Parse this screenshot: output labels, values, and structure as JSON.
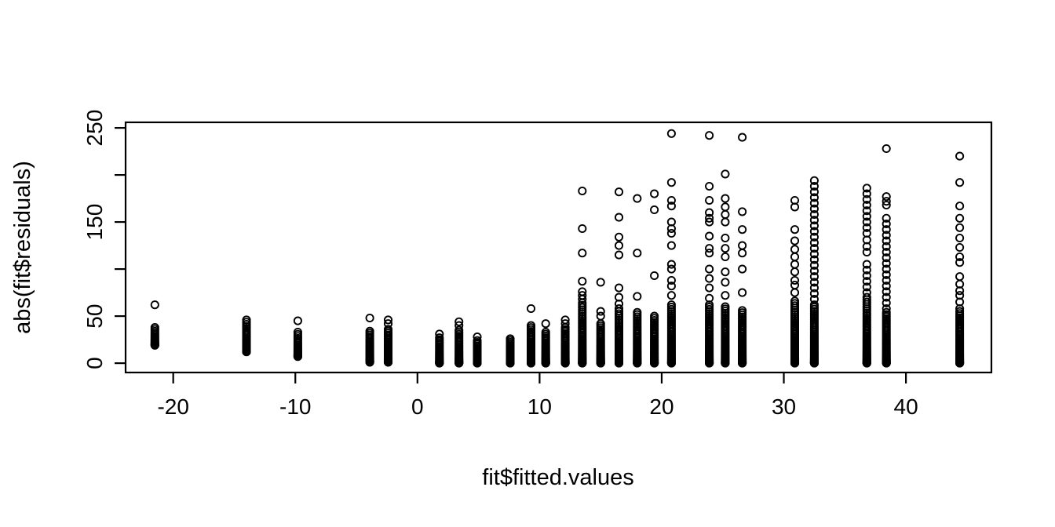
{
  "figure": {
    "background": "#ffffff",
    "foreground": "#000000"
  },
  "chart_data": {
    "type": "scatter",
    "title": "",
    "xlabel": "fit$fitted.values",
    "ylabel": "abs(fit$residuals)",
    "marker": "open-circle",
    "marker_color": "#000000",
    "grid": false,
    "legend": null,
    "xlim": [
      -23.9,
      47.0
    ],
    "ylim": [
      -9.9,
      255.9
    ],
    "x_ticks": [
      -20,
      -10,
      0,
      10,
      20,
      30,
      40
    ],
    "x_tick_labels": [
      "-20",
      "-10",
      "0",
      "10",
      "20",
      "30",
      "40"
    ],
    "y_ticks": [
      0,
      50,
      100,
      150,
      200,
      250
    ],
    "y_tick_labels": [
      "0",
      "50",
      "",
      "150",
      "",
      "250"
    ],
    "clusters": [
      {
        "x": -21.5,
        "dense": [
          19,
          38
        ],
        "n": 16,
        "outliers": [
          62
        ]
      },
      {
        "x": -14.0,
        "dense": [
          12,
          46
        ],
        "n": 25,
        "outliers": []
      },
      {
        "x": -9.8,
        "dense": [
          7,
          33
        ],
        "n": 20,
        "outliers": [
          45
        ]
      },
      {
        "x": -3.9,
        "dense": [
          1,
          34
        ],
        "n": 28,
        "outliers": [
          48
        ]
      },
      {
        "x": -2.4,
        "dense": [
          1,
          36
        ],
        "n": 30,
        "outliers": [
          46,
          42
        ]
      },
      {
        "x": 1.8,
        "dense": [
          0,
          27
        ],
        "n": 24,
        "outliers": [
          31
        ]
      },
      {
        "x": 3.4,
        "dense": [
          0,
          35
        ],
        "n": 28,
        "outliers": [
          44,
          40
        ]
      },
      {
        "x": 4.9,
        "dense": [
          0,
          24
        ],
        "n": 22,
        "outliers": [
          28
        ]
      },
      {
        "x": 7.6,
        "dense": [
          0,
          26
        ],
        "n": 24,
        "outliers": []
      },
      {
        "x": 9.3,
        "dense": [
          0,
          40
        ],
        "n": 32,
        "outliers": [
          58
        ]
      },
      {
        "x": 10.5,
        "dense": [
          0,
          33
        ],
        "n": 28,
        "outliers": [
          42
        ]
      },
      {
        "x": 12.1,
        "dense": [
          0,
          38
        ],
        "n": 30,
        "outliers": [
          46,
          42
        ]
      },
      {
        "x": 13.5,
        "dense": [
          0,
          64
        ],
        "n": 45,
        "outliers": [
          68,
          72,
          76,
          87,
          117,
          143,
          183
        ]
      },
      {
        "x": 15.0,
        "dense": [
          0,
          42
        ],
        "n": 34,
        "outliers": [
          50,
          55,
          86
        ]
      },
      {
        "x": 16.5,
        "dense": [
          0,
          55
        ],
        "n": 40,
        "outliers": [
          58,
          63,
          70,
          80,
          115,
          125,
          134,
          155,
          182
        ]
      },
      {
        "x": 18.0,
        "dense": [
          0,
          54
        ],
        "n": 40,
        "outliers": [
          71,
          117,
          175
        ]
      },
      {
        "x": 19.4,
        "dense": [
          0,
          50
        ],
        "n": 38,
        "outliers": [
          93,
          163,
          180
        ]
      },
      {
        "x": 20.8,
        "dense": [
          0,
          62
        ],
        "n": 45,
        "outliers": [
          72,
          82,
          88,
          100,
          105,
          125,
          138,
          143,
          150,
          167,
          173,
          192,
          244
        ]
      },
      {
        "x": 23.9,
        "dense": [
          0,
          62
        ],
        "n": 45,
        "outliers": [
          69,
          80,
          90,
          100,
          117,
          122,
          135,
          150,
          154,
          160,
          173,
          188,
          242
        ]
      },
      {
        "x": 25.2,
        "dense": [
          0,
          60
        ],
        "n": 44,
        "outliers": [
          72,
          86,
          97,
          113,
          122,
          133,
          150,
          158,
          166,
          175,
          201
        ]
      },
      {
        "x": 26.6,
        "dense": [
          0,
          56
        ],
        "n": 42,
        "outliers": [
          75,
          100,
          117,
          125,
          142,
          161,
          240
        ]
      },
      {
        "x": 30.9,
        "dense": [
          0,
          66
        ],
        "n": 46,
        "outliers": [
          75,
          83,
          88,
          97,
          105,
          113,
          121,
          130,
          142,
          166,
          173
        ]
      },
      {
        "x": 32.5,
        "dense": [
          0,
          62
        ],
        "n": 46,
        "outliers": [
          68,
          74,
          80,
          86,
          92,
          98,
          104,
          110,
          116,
          122,
          128,
          134,
          140,
          146,
          152,
          158,
          164,
          170,
          176,
          182,
          188,
          194
        ]
      },
      {
        "x": 36.8,
        "dense": [
          0,
          70
        ],
        "n": 48,
        "outliers": [
          75,
          81,
          87,
          93,
          99,
          105,
          118,
          124,
          131,
          138,
          144,
          150,
          156,
          162,
          168,
          174,
          180,
          186
        ]
      },
      {
        "x": 38.4,
        "dense": [
          0,
          54
        ],
        "n": 42,
        "outliers": [
          58,
          64,
          70,
          76,
          82,
          88,
          94,
          100,
          106,
          112,
          118,
          124,
          130,
          136,
          142,
          148,
          154,
          168,
          172,
          177,
          228
        ]
      },
      {
        "x": 44.4,
        "dense": [
          0,
          55
        ],
        "n": 42,
        "outliers": [
          58,
          65,
          72,
          77,
          84,
          92,
          107,
          113,
          123,
          133,
          144,
          154,
          167,
          192,
          220
        ]
      }
    ]
  }
}
